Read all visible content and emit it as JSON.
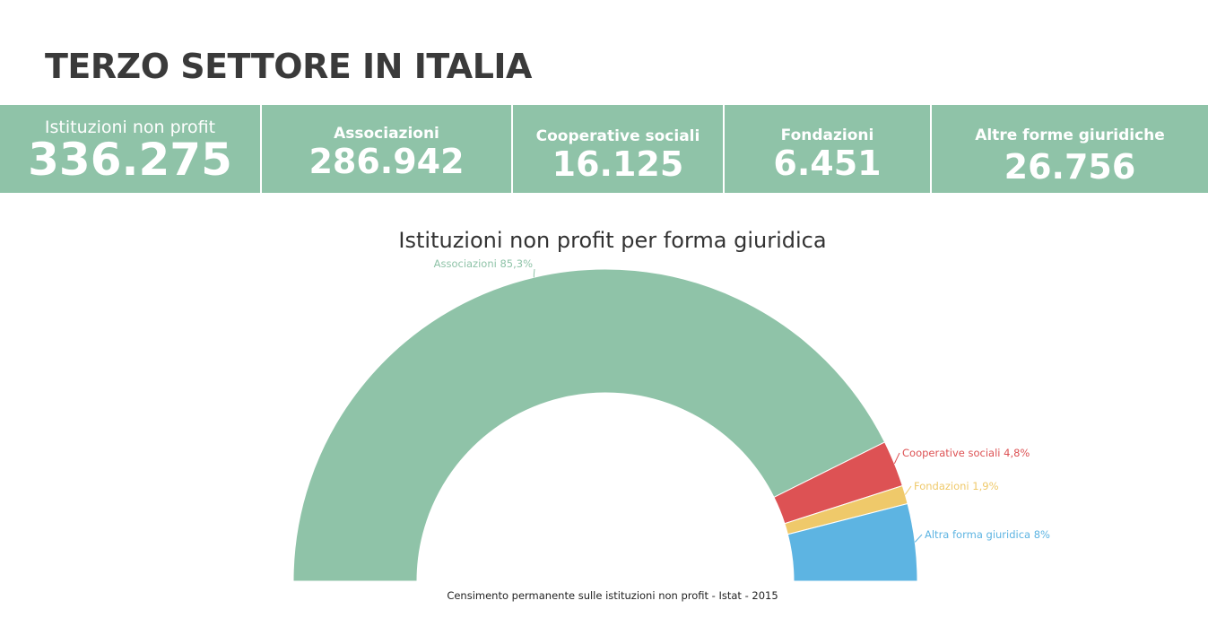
{
  "header": {
    "title": "TERZO SETTORE IN ITALIA"
  },
  "stats": [
    {
      "label": "Istituzioni non profit",
      "value": "336.275"
    },
    {
      "label": "Associazioni",
      "value": "286.942"
    },
    {
      "label": "Cooperative sociali",
      "value": "16.125"
    },
    {
      "label": "Fondazioni",
      "value": "6.451"
    },
    {
      "label": "Altre forme giuridiche",
      "value": "26.756"
    }
  ],
  "chart_data": {
    "type": "pie",
    "variant": "semi-donut",
    "title": "Istituzioni non profit per forma giuridica",
    "source": "Censimento permanente sulle istituzioni non profit - Istat - 2015",
    "legend": "none",
    "slices": [
      {
        "name": "Associazioni",
        "value": 85.3,
        "label": "Associazioni 85,3%",
        "color": "#8fc3a8"
      },
      {
        "name": "Cooperative sociali",
        "value": 4.8,
        "label": "Cooperative sociali 4,8%",
        "color": "#dd5254"
      },
      {
        "name": "Fondazioni",
        "value": 1.9,
        "label": "Fondazioni 1,9%",
        "color": "#efc96a"
      },
      {
        "name": "Altra forma giuridica",
        "value": 8,
        "label": "Altra forma giuridica 8%",
        "color": "#5db4e2"
      }
    ]
  }
}
